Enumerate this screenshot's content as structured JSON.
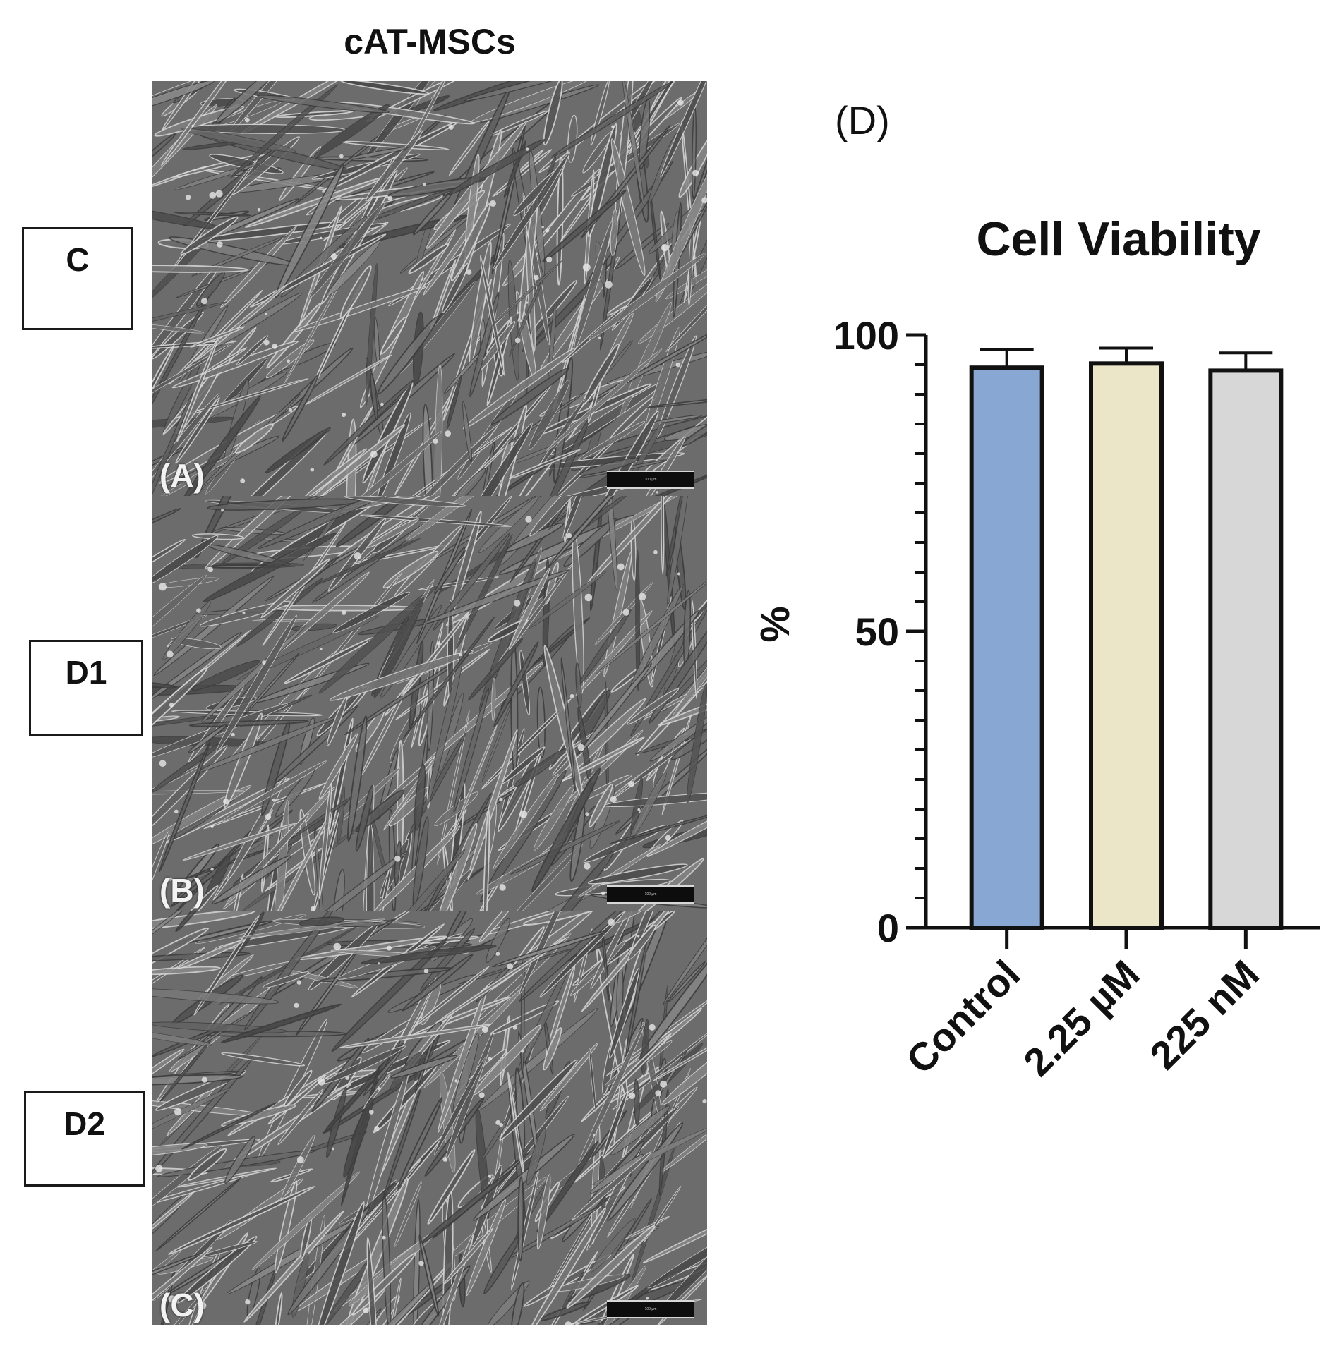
{
  "column_title": "cAT-MSCs",
  "group_labels": {
    "c": "C",
    "d1": "D1",
    "d2": "D2"
  },
  "micrographs": [
    {
      "panel": "(A)",
      "scale_bar": "100 µm"
    },
    {
      "panel": "(B)",
      "scale_bar": "100 µm"
    },
    {
      "panel": "(C)",
      "scale_bar": "100 µm"
    }
  ],
  "panel_d_label": "(D)",
  "chart_data": {
    "type": "bar",
    "title": "Cell Viability",
    "xlabel": "",
    "ylabel": "%",
    "ylim": [
      0,
      100
    ],
    "yticks": [
      "0",
      "50",
      "100"
    ],
    "categories": [
      "Control",
      "2.25 µM",
      "225 nM"
    ],
    "values": [
      94.5,
      95.2,
      94.0
    ],
    "errors": [
      3.0,
      2.6,
      3.0
    ],
    "colors": [
      "#88a8d3",
      "#ece6c9",
      "#d6d7d6"
    ],
    "grid": false,
    "legend": "none"
  }
}
